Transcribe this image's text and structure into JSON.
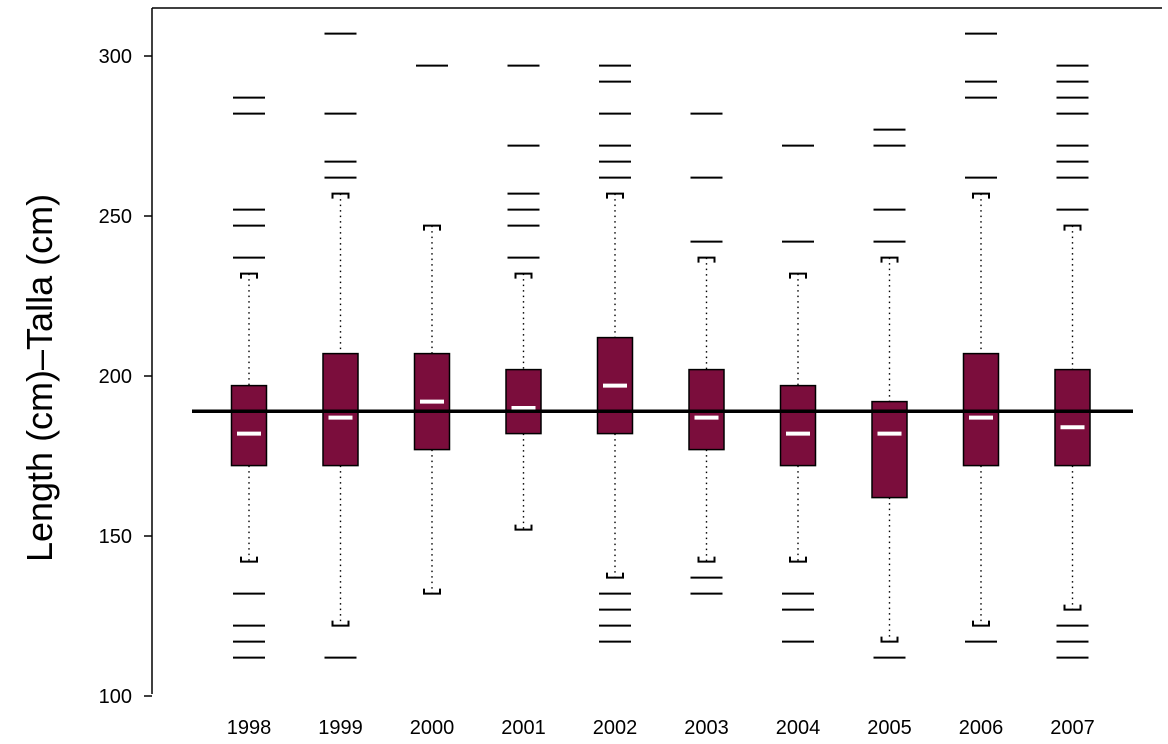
{
  "chart_data": {
    "type": "boxplot",
    "title": "",
    "xlabel": "",
    "ylabel": "Length (cm)–Talla (cm)",
    "ylim": [
      100,
      315
    ],
    "yticks": [
      100,
      150,
      200,
      250,
      300
    ],
    "categories": [
      "1998",
      "1999",
      "2000",
      "2001",
      "2002",
      "2003",
      "2004",
      "2005",
      "2006",
      "2007"
    ],
    "reference_line": 189,
    "colors": {
      "box": "#7b0d3c",
      "median": "#ffffff",
      "line": "#000000"
    },
    "boxes": [
      {
        "year": "1998",
        "q1": 172,
        "median": 182,
        "q3": 197,
        "whisker_low": 142,
        "whisker_high": 232,
        "outliers": [
          112,
          117,
          122,
          132,
          237,
          247,
          252,
          282,
          287
        ]
      },
      {
        "year": "1999",
        "q1": 172,
        "median": 187,
        "q3": 207,
        "whisker_low": 122,
        "whisker_high": 257,
        "outliers": [
          112,
          262,
          267,
          282,
          307
        ]
      },
      {
        "year": "2000",
        "q1": 177,
        "median": 192,
        "q3": 207,
        "whisker_low": 132,
        "whisker_high": 247,
        "outliers": [
          297
        ]
      },
      {
        "year": "2001",
        "q1": 182,
        "median": 190,
        "q3": 202,
        "whisker_low": 152,
        "whisker_high": 232,
        "outliers": [
          237,
          247,
          252,
          257,
          272,
          297
        ]
      },
      {
        "year": "2002",
        "q1": 182,
        "median": 197,
        "q3": 212,
        "whisker_low": 137,
        "whisker_high": 257,
        "outliers": [
          117,
          122,
          127,
          132,
          262,
          267,
          272,
          282,
          292,
          297
        ]
      },
      {
        "year": "2003",
        "q1": 177,
        "median": 187,
        "q3": 202,
        "whisker_low": 142,
        "whisker_high": 237,
        "outliers": [
          132,
          137,
          242,
          262,
          282
        ]
      },
      {
        "year": "2004",
        "q1": 172,
        "median": 182,
        "q3": 197,
        "whisker_low": 142,
        "whisker_high": 232,
        "outliers": [
          117,
          127,
          132,
          242,
          272
        ]
      },
      {
        "year": "2005",
        "q1": 162,
        "median": 182,
        "q3": 192,
        "whisker_low": 117,
        "whisker_high": 237,
        "outliers": [
          112,
          242,
          252,
          272,
          277
        ]
      },
      {
        "year": "2006",
        "q1": 172,
        "median": 187,
        "q3": 207,
        "whisker_low": 122,
        "whisker_high": 257,
        "outliers": [
          117,
          262,
          287,
          292,
          307
        ]
      },
      {
        "year": "2007",
        "q1": 172,
        "median": 184,
        "q3": 202,
        "whisker_low": 127,
        "whisker_high": 247,
        "outliers": [
          112,
          117,
          122,
          252,
          262,
          267,
          272,
          282,
          287,
          292,
          297
        ]
      }
    ]
  }
}
